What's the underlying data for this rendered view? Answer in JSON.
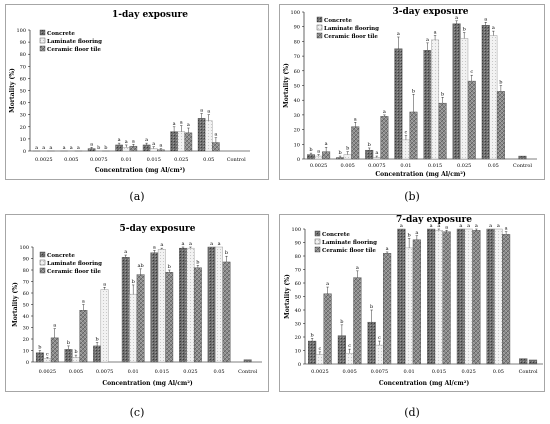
{
  "chart_data": [
    {
      "type": "bar",
      "title": "1-day exposure",
      "panel_label": "(a)",
      "xlabel": "Concentration (mg Al/cm²)",
      "ylabel": "Mortality (%)",
      "ylim": [
        0,
        100
      ],
      "yticks": [
        0,
        10,
        20,
        30,
        40,
        50,
        60,
        70,
        80,
        90,
        100
      ],
      "grid": false,
      "legend_position": "top-left",
      "categories": [
        "0.0025",
        "0.005",
        "0.0075",
        "0.01",
        "0.015",
        "0.025",
        "0.05",
        "Control"
      ],
      "series": [
        {
          "name": "Concrete",
          "values": [
            0,
            0,
            2,
            5,
            5,
            16,
            27,
            null
          ],
          "errors": [
            0,
            0,
            1,
            1.5,
            1.5,
            4,
            4,
            null
          ],
          "letters": [
            "a",
            "a",
            "a",
            "a",
            "a",
            "a",
            "a",
            ""
          ]
        },
        {
          "name": "Laminate flooring",
          "values": [
            0,
            0,
            0,
            3,
            2,
            16,
            25,
            null
          ],
          "errors": [
            0,
            0,
            0,
            2,
            1.5,
            5,
            5,
            null
          ],
          "letters": [
            "a",
            "a",
            "b",
            "a",
            "a",
            "a",
            "a",
            ""
          ]
        },
        {
          "name": "Ceramic floor tile",
          "values": [
            0,
            0,
            0,
            4,
            1,
            15,
            7,
            null
          ],
          "errors": [
            0,
            0,
            0,
            1.5,
            1,
            4,
            4,
            null
          ],
          "letters": [
            "a",
            "a",
            "b",
            "a",
            "a",
            "a",
            "a",
            ""
          ]
        }
      ],
      "control": {
        "value": 0,
        "letter": ""
      }
    },
    {
      "type": "bar",
      "title": "3-day exposure",
      "panel_label": "(b)",
      "xlabel": "Concentration (mg Al/cm²)",
      "ylabel": "Mortality (%)",
      "ylim": [
        0,
        100
      ],
      "yticks": [
        0,
        10,
        20,
        30,
        40,
        50,
        60,
        70,
        80,
        90,
        100
      ],
      "grid": false,
      "legend_position": "top-left",
      "categories": [
        "0.0025",
        "0.005",
        "0.0075",
        "0.01",
        "0.015",
        "0.025",
        "0.05",
        "Control"
      ],
      "series": [
        {
          "name": "Concrete",
          "values": [
            3,
            1,
            6,
            75,
            74,
            92,
            91,
            null
          ],
          "errors": [
            1,
            1,
            1.5,
            8,
            5,
            2,
            2,
            null
          ],
          "letters": [
            "b",
            "b",
            "b",
            "a",
            "a",
            "a",
            "a",
            ""
          ]
        },
        {
          "name": "Laminate flooring",
          "values": [
            2,
            3,
            1,
            13,
            81,
            82,
            84,
            null
          ],
          "errors": [
            1,
            2,
            1,
            3,
            3,
            4,
            3,
            null
          ],
          "letters": [
            "a",
            "b",
            "a",
            "c",
            "a",
            "b",
            "a",
            ""
          ]
        },
        {
          "name": "Ceramic floor tile",
          "values": [
            5,
            22,
            29,
            32,
            38,
            53,
            46,
            null
          ],
          "errors": [
            3,
            3,
            1,
            12,
            4,
            4,
            4,
            null
          ],
          "letters": [
            "a",
            "a",
            "a",
            "b",
            "b",
            "c",
            "b",
            ""
          ]
        }
      ],
      "control": {
        "value": 2,
        "letter": ""
      }
    },
    {
      "type": "bar",
      "title": "5-day exposure",
      "panel_label": "(c)",
      "xlabel": "Concentration (mg Al/cm²)",
      "ylabel": "Mortality (%)",
      "ylim": [
        0,
        100
      ],
      "yticks": [
        0,
        10,
        20,
        30,
        40,
        50,
        60,
        70,
        80,
        90,
        100
      ],
      "grid": false,
      "legend_position": "top-left",
      "categories": [
        "0.0025",
        "0.005",
        "0.0075",
        "0.01",
        "0.015",
        "0.025",
        "0.05",
        "Control"
      ],
      "series": [
        {
          "name": "Concrete",
          "values": [
            8,
            11,
            14,
            91,
            95,
            99,
            100,
            null
          ],
          "errors": [
            2,
            3,
            3,
            2,
            2,
            1,
            0,
            null
          ],
          "letters": [
            "b",
            "b",
            "b",
            "a",
            "a",
            "a",
            "a",
            ""
          ]
        },
        {
          "name": "Laminate flooring",
          "values": [
            3,
            4,
            63,
            59,
            98,
            99,
            100,
            null
          ],
          "errors": [
            1,
            2,
            2,
            8,
            1,
            1,
            0,
            null
          ],
          "letters": [
            "c",
            "b",
            "a",
            "b",
            "a",
            "a",
            "a",
            ""
          ]
        },
        {
          "name": "Ceramic floor tile",
          "values": [
            21,
            45,
            null,
            76,
            78,
            82,
            87,
            null
          ],
          "errors": [
            8,
            5,
            null,
            5,
            2,
            2,
            5,
            null
          ],
          "letters": [
            "a",
            "a",
            "",
            "ab",
            "b",
            "b",
            "b",
            ""
          ]
        }
      ],
      "control": {
        "value": 2,
        "letter": ""
      }
    },
    {
      "type": "bar",
      "title": "7-day exposure",
      "panel_label": "(d)",
      "xlabel": "Concentration (mg Al/cm²)",
      "ylabel": "Mortality (%)",
      "ylim": [
        0,
        100
      ],
      "yticks": [
        0,
        10,
        20,
        30,
        40,
        50,
        60,
        70,
        80,
        90,
        100
      ],
      "grid": false,
      "legend_position": "top-left",
      "categories": [
        "0.0025",
        "0.005",
        "0.0075",
        "0.01",
        "0.015",
        "0.025",
        "0.05",
        "Control"
      ],
      "series": [
        {
          "name": "Concrete",
          "values": [
            17,
            21,
            31,
            100,
            100,
            100,
            100,
            null
          ],
          "errors": [
            2,
            8,
            9,
            0,
            0,
            0,
            0,
            null
          ],
          "letters": [
            "b",
            "b",
            "b",
            "a",
            "a",
            "a",
            "a",
            ""
          ]
        },
        {
          "name": "Laminate flooring",
          "values": [
            7,
            8,
            14,
            86,
            99,
            100,
            100,
            null
          ],
          "errors": [
            2,
            3,
            3,
            7,
            1,
            0,
            0,
            null
          ],
          "letters": [
            "c",
            "c",
            "c",
            "b",
            "a",
            "a",
            "a",
            ""
          ]
        },
        {
          "name": "Ceramic floor tile",
          "values": [
            52,
            64,
            82,
            92,
            98,
            99,
            96,
            null
          ],
          "errors": [
            5,
            5,
            1,
            3,
            1,
            1,
            2,
            null
          ],
          "letters": [
            "a",
            "a",
            "a",
            "a",
            "a",
            "a",
            "a",
            ""
          ]
        }
      ],
      "control": {
        "value": 4,
        "letter": ""
      },
      "control_second": {
        "value": 3
      }
    }
  ],
  "colors": {
    "concrete": "#6e6e6e",
    "laminate": "#f2f2f2",
    "ceramic": "#8c8c8c",
    "frame": "#a6a6a6",
    "text": "#000000"
  }
}
